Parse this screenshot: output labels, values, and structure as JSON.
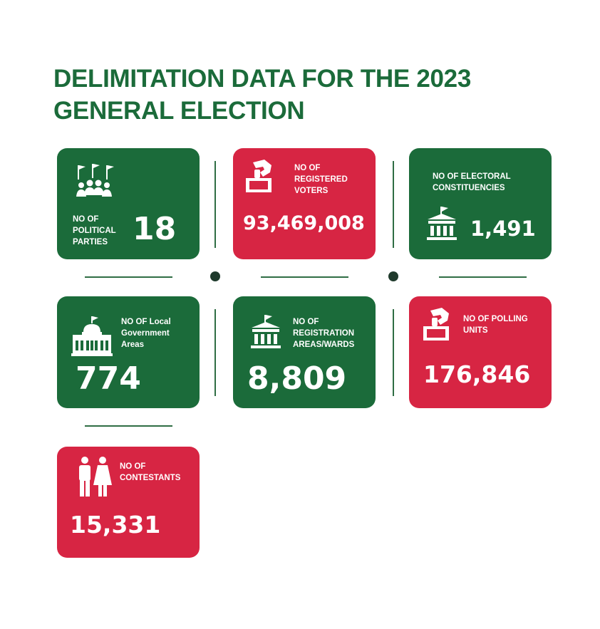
{
  "title": {
    "line1": "DELIMITATION DATA FOR THE 2023",
    "line2": "GENERAL ELECTION"
  },
  "colors": {
    "green": "#1b6b3a",
    "red": "#d72543"
  },
  "cards": {
    "parties": {
      "label_lines": [
        "NO OF",
        "POLITICAL",
        "PARTIES"
      ],
      "value": "18",
      "icon": "party-flags-icon"
    },
    "voters": {
      "label_lines": [
        "NO OF",
        "REGISTERED",
        "VOTERS"
      ],
      "value": "93,469,008",
      "icon": "ballot-box-icon"
    },
    "constituencies": {
      "label_lines": [
        "NO OF ELECTORAL",
        "CONSTITUENCIES"
      ],
      "value": "1,491",
      "icon": "building-flag-icon"
    },
    "lga": {
      "label_lines": [
        "NO OF Local",
        "Government",
        "Areas"
      ],
      "value": "774",
      "icon": "capitol-building-icon"
    },
    "wards": {
      "label_lines": [
        "NO OF",
        "REGISTRATION",
        "AREAS/WARDS"
      ],
      "value": "8,809",
      "icon": "building-flag-icon"
    },
    "polling": {
      "label_lines": [
        "NO OF POLLING",
        "UNITS"
      ],
      "value": "176,846",
      "icon": "ballot-box-icon"
    },
    "contestants": {
      "label_lines": [
        "NO OF",
        "CONTESTANTS"
      ],
      "value": "15,331",
      "icon": "man-woman-icon"
    }
  }
}
